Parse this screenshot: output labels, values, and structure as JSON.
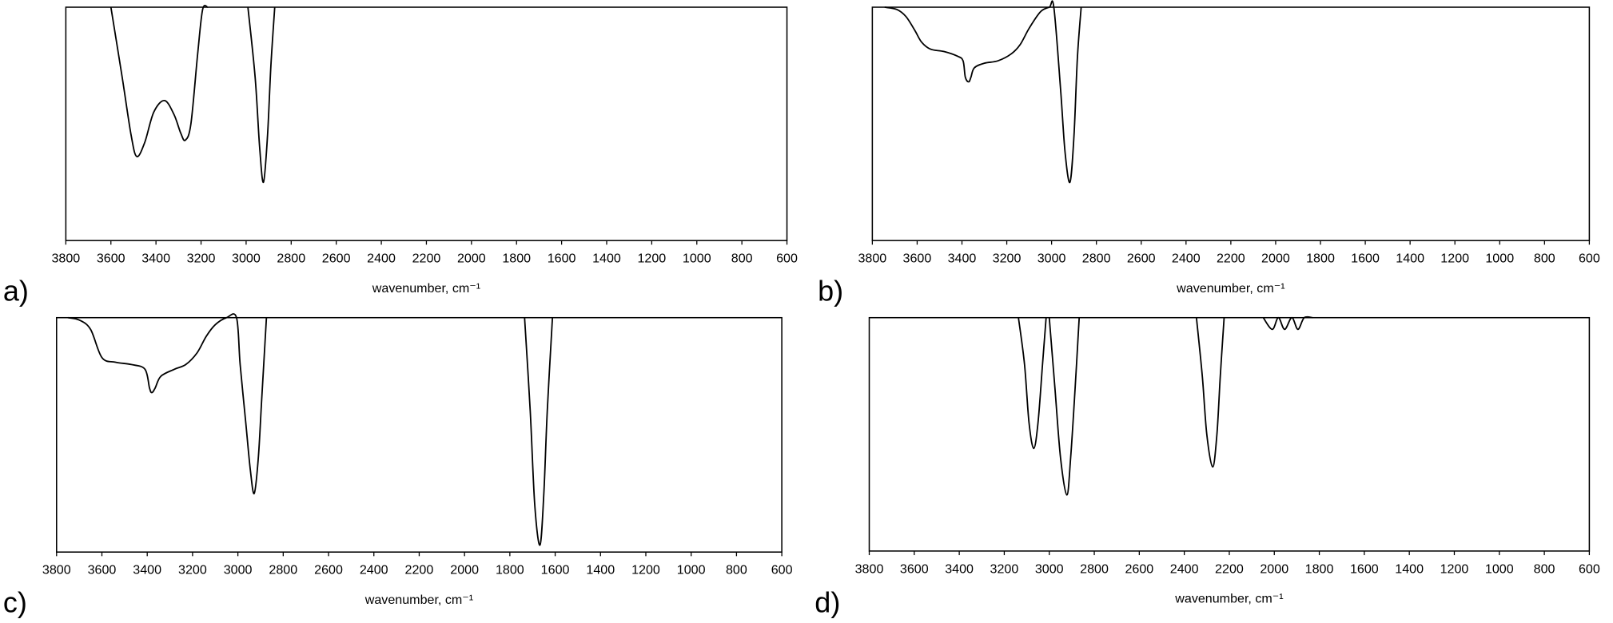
{
  "chart_data": [
    {
      "type": "line",
      "label": "a)",
      "xlabel": "wavenumber, cm⁻¹",
      "xlim": [
        3800,
        600
      ],
      "ylim": [
        0,
        100
      ],
      "xticks": [
        3800,
        3600,
        3400,
        3200,
        3000,
        2800,
        2600,
        2400,
        2200,
        2000,
        1800,
        1600,
        1400,
        1200,
        1000,
        800,
        600
      ],
      "color": "#000000",
      "x": [
        3600,
        3550,
        3510,
        3485,
        3450,
        3410,
        3362,
        3320,
        3290,
        3270,
        3245,
        3215,
        3193,
        3170,
        3050,
        2992,
        2960,
        2940,
        2923,
        2905,
        2890,
        2873
      ],
      "values": [
        100,
        70,
        45,
        36,
        42,
        55,
        60,
        54,
        46,
        43,
        50,
        80,
        99,
        100,
        null,
        100,
        70,
        40,
        25,
        45,
        75,
        100
      ]
    },
    {
      "type": "line",
      "label": "b)",
      "xlabel": "wavenumber, cm⁻¹",
      "xlim": [
        3800,
        600
      ],
      "ylim": [
        0,
        100
      ],
      "xticks": [
        3800,
        3600,
        3400,
        3200,
        3000,
        2800,
        2600,
        2400,
        2200,
        2000,
        1800,
        1600,
        1400,
        1200,
        1000,
        800,
        600
      ],
      "color": "#000000",
      "x": [
        3745,
        3690,
        3650,
        3610,
        3580,
        3540,
        3480,
        3420,
        3395,
        3385,
        3370,
        3360,
        3345,
        3300,
        3240,
        3180,
        3140,
        3100,
        3050,
        3010,
        2990,
        2960,
        2940,
        2918,
        2900,
        2885,
        2868
      ],
      "values": [
        100,
        99,
        96,
        90,
        85,
        82,
        81,
        79,
        77,
        70,
        68,
        70,
        74,
        76,
        77,
        80,
        84,
        91,
        98,
        100,
        100,
        65,
        38,
        25,
        45,
        78,
        100
      ]
    },
    {
      "type": "line",
      "label": "c)",
      "xlabel": "wavenumber, cm⁻¹",
      "xlim": [
        3800,
        600
      ],
      "ylim": [
        0,
        100
      ],
      "xticks": [
        3800,
        3600,
        3400,
        3200,
        3000,
        2800,
        2600,
        2400,
        2200,
        2000,
        1800,
        1600,
        1400,
        1200,
        1000,
        800,
        600
      ],
      "color": "#000000",
      "x": [
        3750,
        3700,
        3650,
        3600,
        3540,
        3470,
        3410,
        3390,
        3380,
        3365,
        3340,
        3280,
        3230,
        3180,
        3140,
        3100,
        3050,
        3006,
        2990,
        2965,
        2945,
        2928,
        2910,
        2895,
        2874,
        1800,
        1735,
        1710,
        1690,
        1667,
        1650,
        1635,
        1612
      ],
      "values": [
        100,
        99,
        95,
        83,
        81,
        80,
        78,
        70,
        68,
        70,
        75,
        78,
        80,
        85,
        92,
        97,
        100,
        100,
        80,
        55,
        35,
        25,
        40,
        65,
        100,
        null,
        100,
        60,
        20,
        3,
        25,
        60,
        100
      ]
    },
    {
      "type": "line",
      "label": "d)",
      "xlabel": "wavenumber, cm⁻¹",
      "xlim": [
        3800,
        600
      ],
      "ylim": [
        0,
        100
      ],
      "xticks": [
        3800,
        3600,
        3400,
        3200,
        3000,
        2800,
        2600,
        2400,
        2200,
        2000,
        1800,
        1600,
        1400,
        1200,
        1000,
        800,
        600
      ],
      "color": "#000000",
      "x": [
        3137,
        3110,
        3090,
        3069,
        3050,
        3030,
        3014,
        3007,
        3000,
        2975,
        2950,
        2922,
        2905,
        2885,
        2867,
        2500,
        2346,
        2320,
        2300,
        2274,
        2255,
        2240,
        2223,
        2100,
        2049,
        2009,
        1982,
        1954,
        1922,
        1895,
        1867,
        1830
      ],
      "values": [
        100,
        80,
        55,
        44,
        55,
        80,
        100,
        null,
        100,
        70,
        40,
        24,
        40,
        70,
        100,
        null,
        100,
        75,
        50,
        36,
        50,
        75,
        100,
        null,
        100,
        95,
        100,
        95,
        100,
        95,
        100,
        100
      ]
    }
  ]
}
